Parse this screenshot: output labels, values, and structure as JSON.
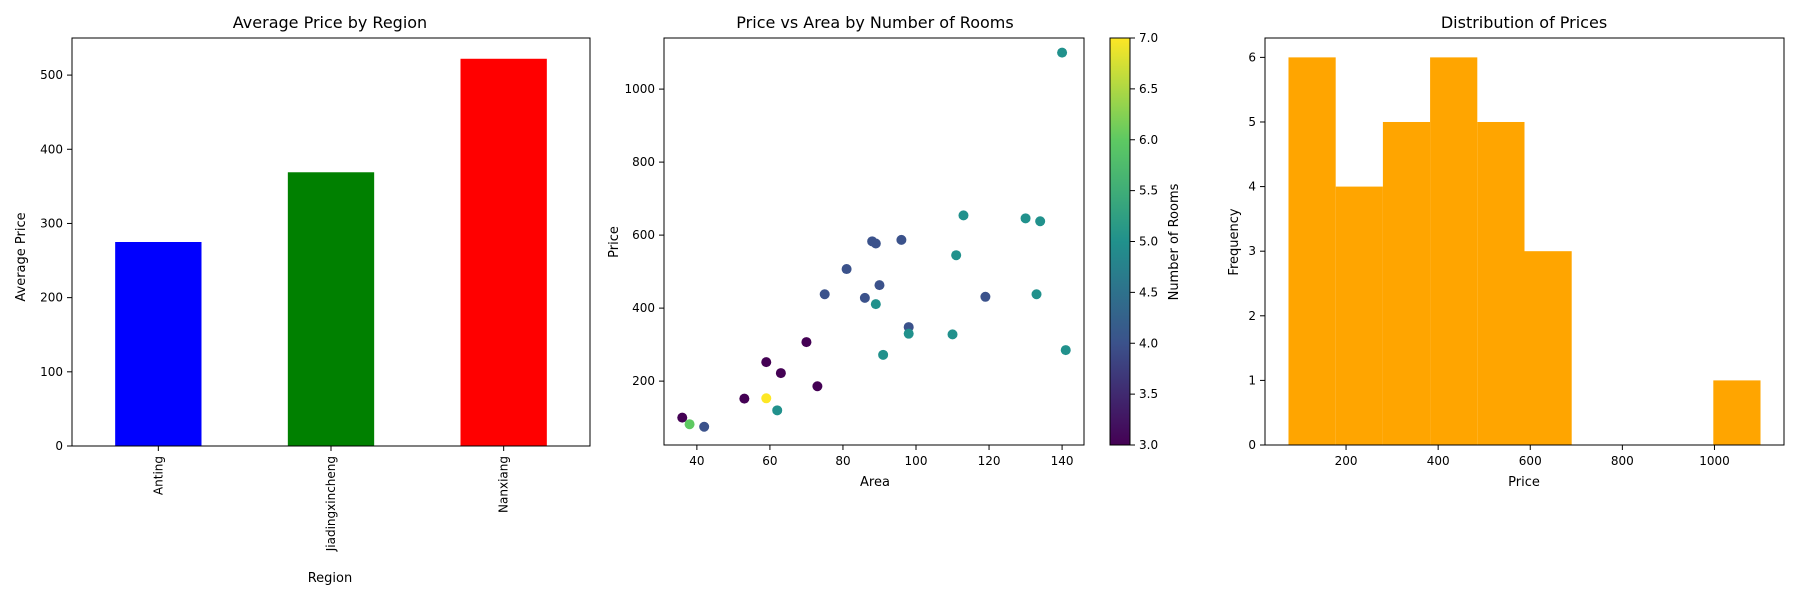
{
  "chart_data": [
    {
      "type": "bar",
      "title": "Average Price by Region",
      "xlabel": "Region",
      "ylabel": "Average Price",
      "categories": [
        "Anting",
        "Jiadingxincheng",
        "Nanxiang"
      ],
      "values": [
        275,
        369,
        522
      ],
      "colors": [
        "#0000ff",
        "#008000",
        "#ff0000"
      ],
      "ylim": [
        0,
        550
      ],
      "yticks": [
        0,
        100,
        200,
        300,
        400,
        500
      ],
      "grid": false
    },
    {
      "type": "scatter",
      "title": "Price vs Area by Number of Rooms",
      "xlabel": "Area",
      "ylabel": "Price",
      "xlim": [
        31,
        146
      ],
      "ylim": [
        25,
        1140
      ],
      "xticks": [
        40,
        60,
        80,
        100,
        120,
        140
      ],
      "yticks": [
        200,
        400,
        600,
        800,
        1000
      ],
      "colormap": "viridis",
      "colorbar": {
        "label": "Number of Rooms",
        "range": [
          3.0,
          7.0
        ],
        "ticks": [
          "3.0",
          "3.5",
          "4.0",
          "4.5",
          "5.0",
          "5.5",
          "6.0",
          "6.5",
          "7.0"
        ]
      },
      "points": [
        {
          "x": 36,
          "y": 100,
          "rooms": 3
        },
        {
          "x": 38,
          "y": 82,
          "rooms": 6
        },
        {
          "x": 42,
          "y": 75,
          "rooms": 4
        },
        {
          "x": 53,
          "y": 152,
          "rooms": 3
        },
        {
          "x": 59,
          "y": 252,
          "rooms": 3
        },
        {
          "x": 59,
          "y": 153,
          "rooms": 7
        },
        {
          "x": 62,
          "y": 120,
          "rooms": 5
        },
        {
          "x": 63,
          "y": 222,
          "rooms": 3
        },
        {
          "x": 70,
          "y": 307,
          "rooms": 3
        },
        {
          "x": 73,
          "y": 186,
          "rooms": 3
        },
        {
          "x": 75,
          "y": 438,
          "rooms": 4
        },
        {
          "x": 81,
          "y": 507,
          "rooms": 4
        },
        {
          "x": 86,
          "y": 428,
          "rooms": 4
        },
        {
          "x": 88,
          "y": 583,
          "rooms": 4
        },
        {
          "x": 89,
          "y": 577,
          "rooms": 4
        },
        {
          "x": 89,
          "y": 411,
          "rooms": 5
        },
        {
          "x": 90,
          "y": 463,
          "rooms": 4
        },
        {
          "x": 91,
          "y": 272,
          "rooms": 5
        },
        {
          "x": 96,
          "y": 587,
          "rooms": 4
        },
        {
          "x": 98,
          "y": 348,
          "rooms": 4
        },
        {
          "x": 98,
          "y": 330,
          "rooms": 5
        },
        {
          "x": 110,
          "y": 328,
          "rooms": 5
        },
        {
          "x": 111,
          "y": 545,
          "rooms": 5
        },
        {
          "x": 113,
          "y": 654,
          "rooms": 5
        },
        {
          "x": 119,
          "y": 431,
          "rooms": 4
        },
        {
          "x": 130,
          "y": 646,
          "rooms": 5
        },
        {
          "x": 133,
          "y": 438,
          "rooms": 5
        },
        {
          "x": 134,
          "y": 638,
          "rooms": 5
        },
        {
          "x": 140,
          "y": 1100,
          "rooms": 5
        },
        {
          "x": 141,
          "y": 285,
          "rooms": 5
        }
      ],
      "grid": false
    },
    {
      "type": "bar",
      "subtype": "histogram",
      "title": "Distribution of Prices",
      "xlabel": "Price",
      "ylabel": "Frequency",
      "bin_edges": [
        75,
        177.5,
        280,
        382.5,
        485,
        587.5,
        690,
        792.5,
        895,
        997.5,
        1100
      ],
      "values": [
        6,
        4,
        5,
        6,
        5,
        3,
        0,
        0,
        0,
        1
      ],
      "color": "#ffa500",
      "xlim": [
        24,
        1151
      ],
      "ylim": [
        0,
        6.3
      ],
      "xticks": [
        200,
        400,
        600,
        800,
        1000
      ],
      "yticks": [
        0,
        1,
        2,
        3,
        4,
        5,
        6
      ],
      "grid": false
    }
  ]
}
